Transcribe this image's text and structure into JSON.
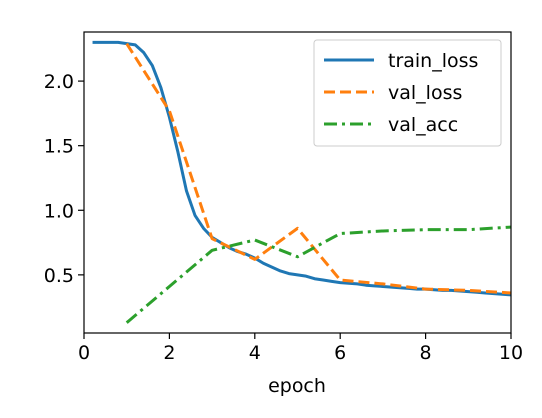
{
  "chart_data": {
    "type": "line",
    "title": "",
    "xlabel": "epoch",
    "ylabel": "",
    "xlim": [
      0,
      10
    ],
    "ylim": [
      0.05,
      2.38
    ],
    "x_ticks": [
      0,
      2,
      4,
      6,
      8,
      10
    ],
    "x_tick_labels": [
      "0",
      "2",
      "4",
      "6",
      "8",
      "10"
    ],
    "y_ticks": [
      0.5,
      1.0,
      1.5,
      2.0
    ],
    "y_tick_labels": [
      "0.5",
      "1.0",
      "1.5",
      "2.0"
    ],
    "grid": false,
    "legend_position": "top-right",
    "series": [
      {
        "name": "train_loss",
        "color": "#1f77b4",
        "style": "solid",
        "x": [
          0.2,
          0.4,
          0.6,
          0.8,
          1.0,
          1.2,
          1.4,
          1.6,
          1.8,
          2.0,
          2.2,
          2.4,
          2.6,
          2.8,
          3.0,
          3.2,
          3.4,
          3.6,
          3.8,
          4.0,
          4.2,
          4.4,
          4.6,
          4.8,
          5.0,
          5.2,
          5.4,
          5.6,
          5.8,
          6.0,
          6.2,
          6.4,
          6.6,
          6.8,
          7.0,
          7.2,
          7.4,
          7.6,
          7.8,
          8.0,
          8.2,
          8.4,
          8.6,
          8.8,
          9.0,
          9.2,
          9.4,
          9.6,
          9.8,
          10.0
        ],
        "values": [
          2.3,
          2.3,
          2.3,
          2.3,
          2.29,
          2.28,
          2.22,
          2.12,
          1.95,
          1.72,
          1.45,
          1.15,
          0.96,
          0.86,
          0.79,
          0.75,
          0.71,
          0.68,
          0.66,
          0.63,
          0.59,
          0.56,
          0.53,
          0.51,
          0.5,
          0.49,
          0.47,
          0.46,
          0.45,
          0.44,
          0.435,
          0.43,
          0.42,
          0.415,
          0.41,
          0.405,
          0.4,
          0.395,
          0.39,
          0.39,
          0.385,
          0.38,
          0.38,
          0.375,
          0.37,
          0.365,
          0.36,
          0.355,
          0.35,
          0.345
        ]
      },
      {
        "name": "val_loss",
        "color": "#ff7f0e",
        "style": "dashed",
        "x": [
          1,
          2,
          3,
          4,
          5,
          6,
          7,
          8,
          9,
          10
        ],
        "values": [
          2.29,
          1.77,
          0.78,
          0.62,
          0.86,
          0.46,
          0.43,
          0.39,
          0.38,
          0.36
        ]
      },
      {
        "name": "val_acc",
        "color": "#2ca02c",
        "style": "dashdot",
        "x": [
          1,
          2,
          3,
          4,
          5,
          6,
          7,
          8,
          9,
          10
        ],
        "values": [
          0.13,
          0.41,
          0.69,
          0.77,
          0.64,
          0.82,
          0.84,
          0.85,
          0.85,
          0.87
        ]
      }
    ]
  }
}
